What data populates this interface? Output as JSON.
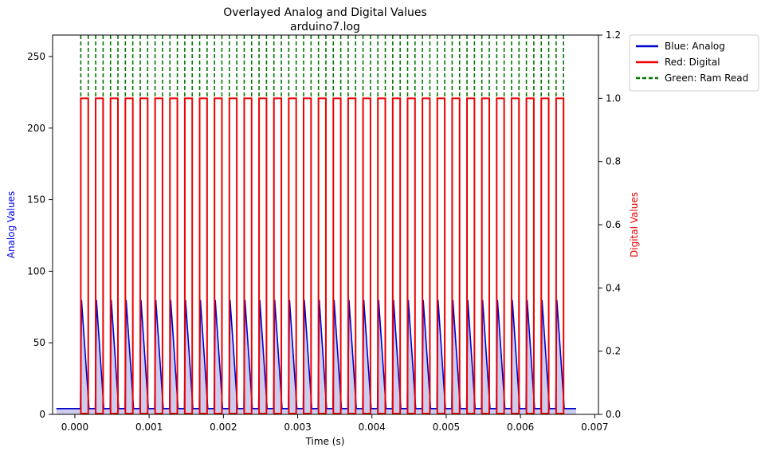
{
  "chart_data": {
    "type": "line",
    "title": "Overlayed Analog and Digital Values",
    "subtitle": "arduino7.log",
    "xlabel": "Time (s)",
    "ylabel_left": "Analog Values",
    "ylabel_right": "Digital Values",
    "xlim": [
      -0.0003,
      0.00705
    ],
    "ylim_left": [
      0,
      265
    ],
    "ylim_right": [
      0,
      1.2
    ],
    "x_ticks": [
      "0.000",
      "0.001",
      "0.002",
      "0.003",
      "0.004",
      "0.005",
      "0.006",
      "0.007"
    ],
    "y_left_ticks": [
      "0",
      "50",
      "100",
      "150",
      "200",
      "250"
    ],
    "y_right_ticks": [
      "0.0",
      "0.2",
      "0.4",
      "0.6",
      "0.8",
      "1.0",
      "1.2"
    ],
    "grid": false,
    "legend_position": "outside-top-right",
    "pulses": {
      "start": 8e-05,
      "period": 0.0002,
      "count": 33,
      "digital_width": 0.0001,
      "analog_peak": 80,
      "analog_baseline": 4,
      "ram_read_value": 1.2
    },
    "series": [
      {
        "name": "Blue: Analog",
        "axis": "left",
        "color": "#0000cc",
        "style": "solid"
      },
      {
        "name": "Red: Digital",
        "axis": "right",
        "color": "#ee0000",
        "style": "solid"
      },
      {
        "name": "Green: Ram Read",
        "axis": "right",
        "color": "#007700",
        "style": "dashed"
      }
    ]
  }
}
